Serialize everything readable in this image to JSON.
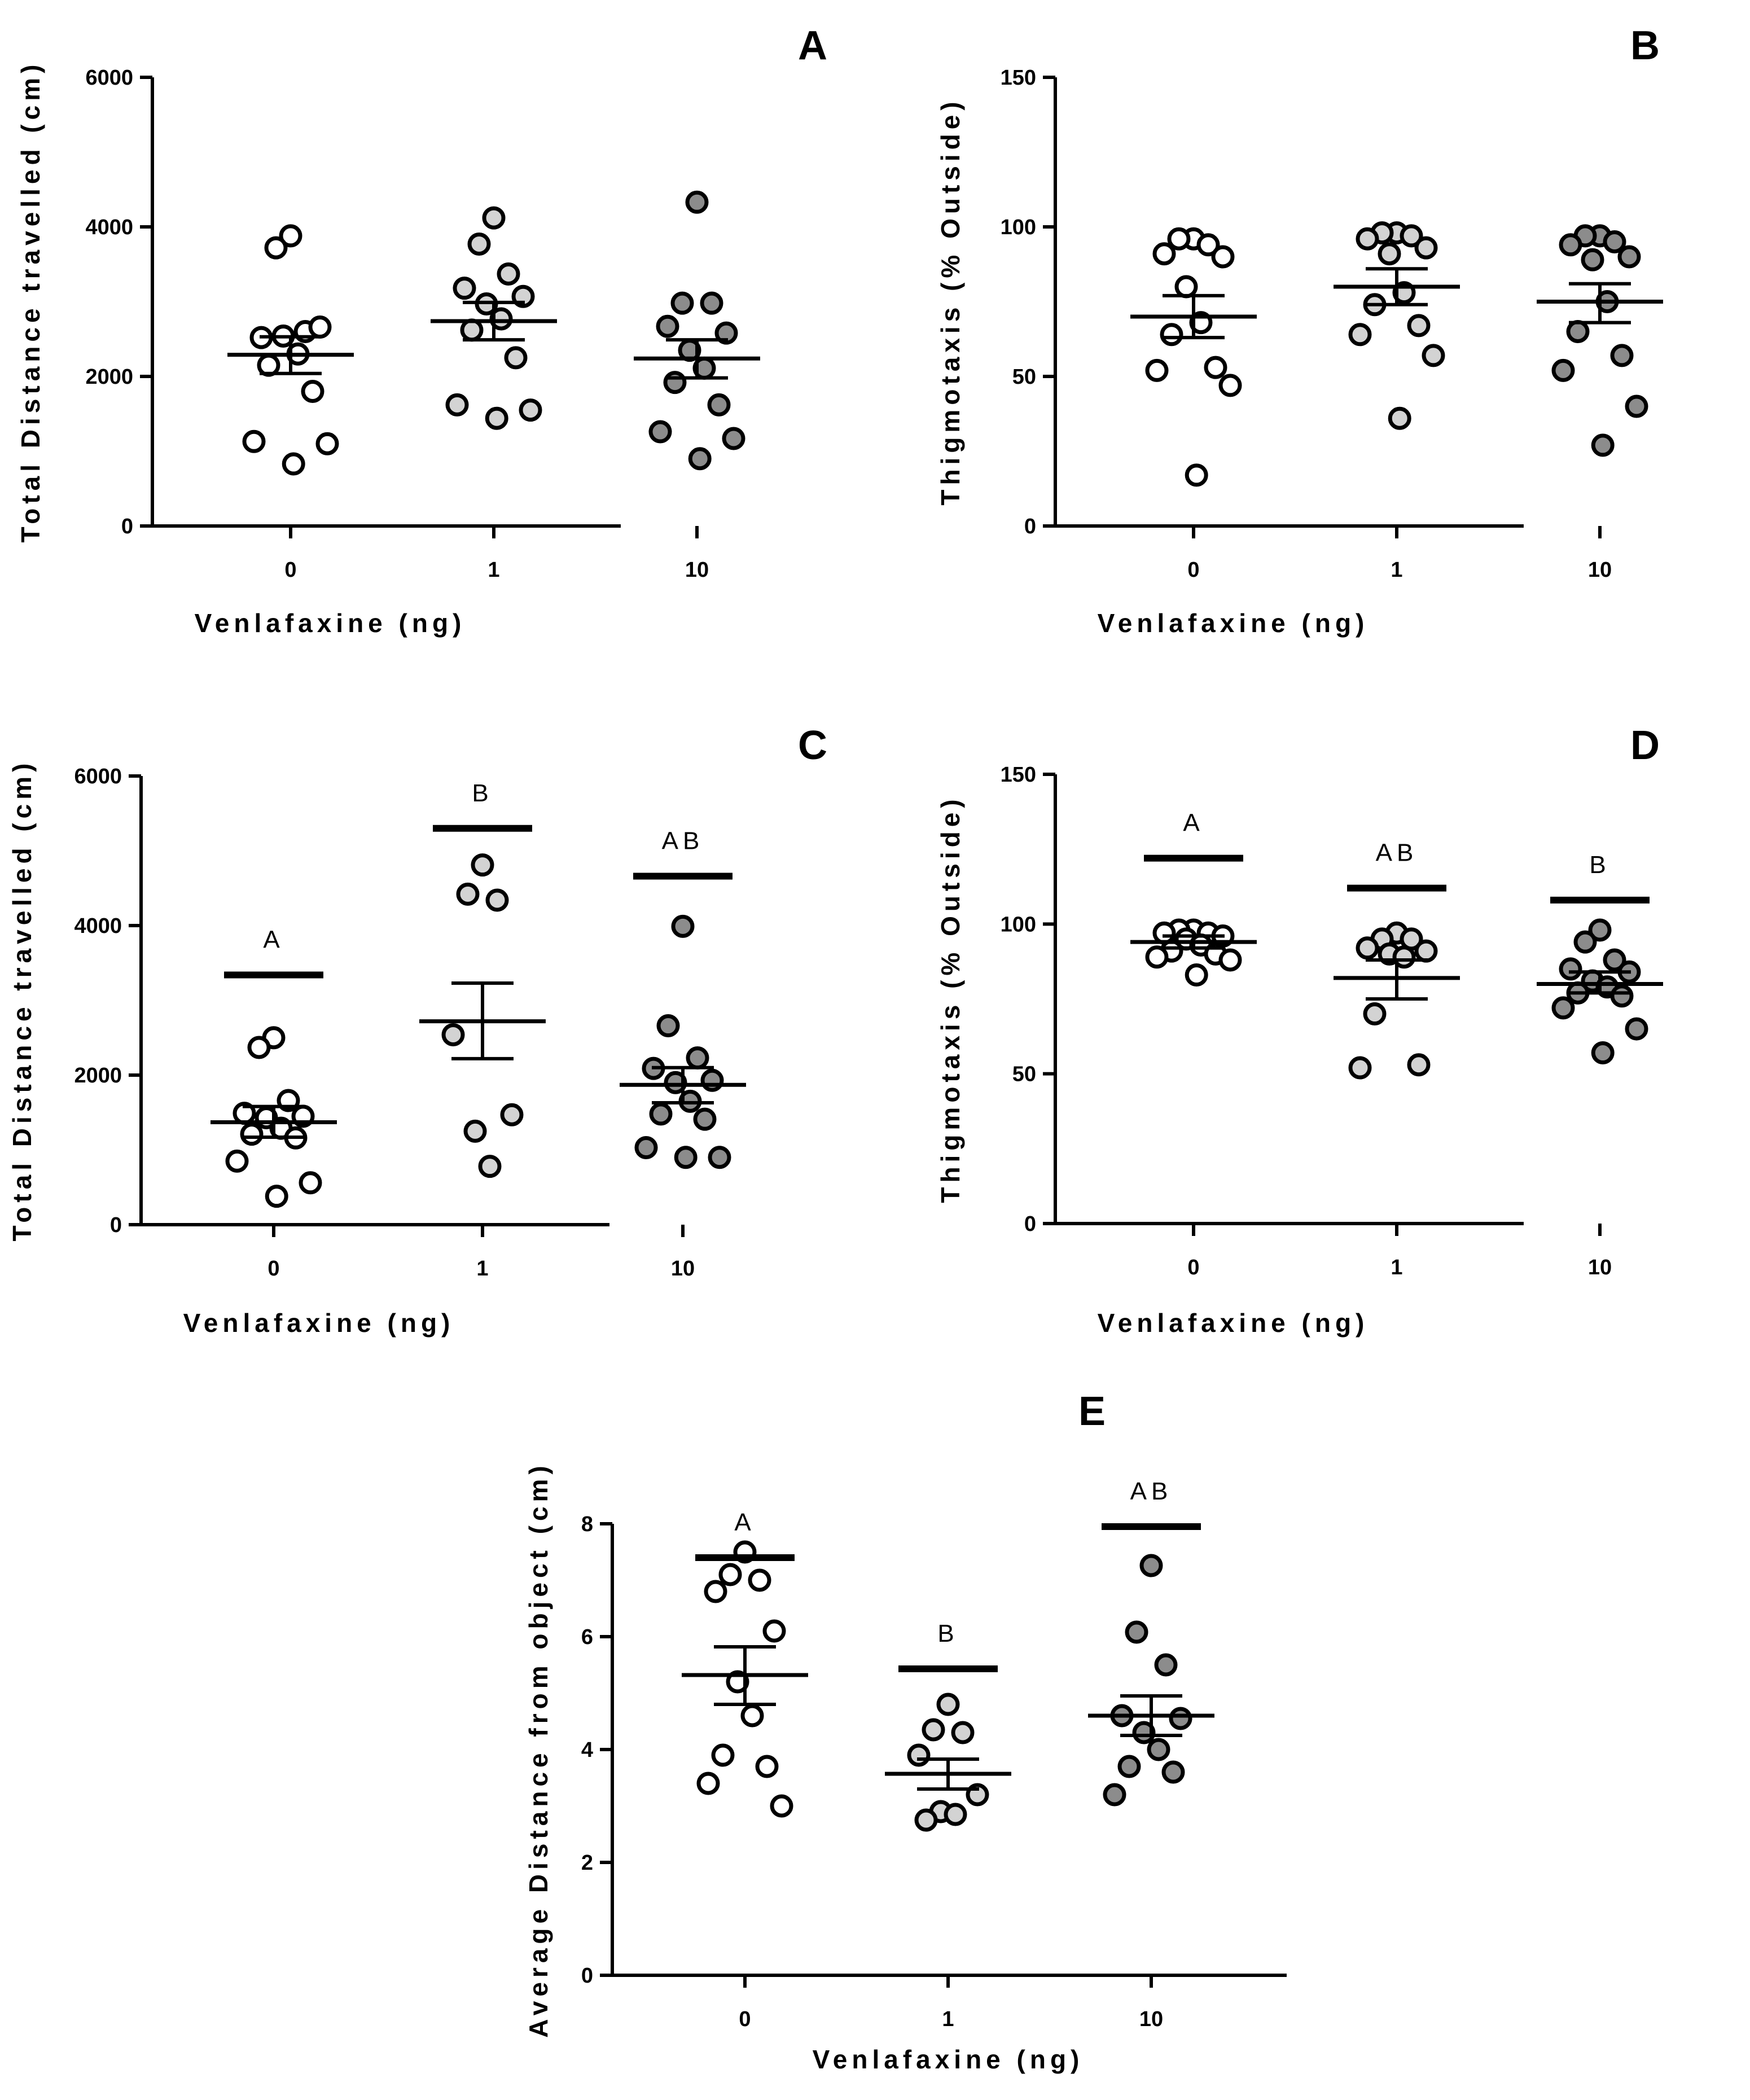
{
  "chart_data": [
    {
      "panel": "A",
      "type": "scatter",
      "xlabel": "Venlafaxine (ng)",
      "ylabel": "Total Distance travelled (cm)",
      "categories": [
        "0",
        "1",
        "10"
      ],
      "ylim": [
        0,
        6000
      ],
      "yticks": [
        "0",
        "2000",
        "4000",
        "6000"
      ],
      "groups": [
        {
          "category": "0",
          "fill": "white",
          "points": [
            3880,
            3720,
            2600,
            2520,
            2660,
            2540,
            2300,
            2150,
            1800,
            1130,
            1100,
            830
          ],
          "mean": 2290,
          "sem_low": 2040,
          "sem_high": 2530
        },
        {
          "category": "1",
          "fill": "lightgray",
          "points": [
            4120,
            3770,
            3370,
            3180,
            3070,
            2970,
            2770,
            2620,
            2250,
            1620,
            1550,
            1440
          ],
          "mean": 2740,
          "sem_low": 2490,
          "sem_high": 2990
        },
        {
          "category": "10",
          "fill": "gray",
          "points": [
            4330,
            2980,
            2980,
            2670,
            2580,
            2350,
            2110,
            1920,
            1620,
            1260,
            1170,
            900
          ],
          "mean": 2240,
          "sem_low": 1980,
          "sem_high": 2490
        }
      ],
      "significance": []
    },
    {
      "panel": "B",
      "type": "scatter",
      "xlabel": "Venlafaxine (ng)",
      "ylabel": "Thigmotaxis (% Outside)",
      "categories": [
        "0",
        "1",
        "10"
      ],
      "ylim": [
        0,
        150
      ],
      "yticks": [
        "0",
        "50",
        "100",
        "150"
      ],
      "groups": [
        {
          "category": "0",
          "fill": "white",
          "points": [
            96,
            96,
            94,
            91,
            90,
            80,
            68,
            64,
            53,
            52,
            47,
            17
          ],
          "mean": 70,
          "sem_low": 63,
          "sem_high": 77
        },
        {
          "category": "1",
          "fill": "lightgray",
          "points": [
            98,
            98,
            97,
            96,
            93,
            91,
            78,
            74,
            67,
            64,
            57,
            36
          ],
          "mean": 80,
          "sem_low": 74,
          "sem_high": 86
        },
        {
          "category": "10",
          "fill": "gray",
          "points": [
            97,
            97,
            95,
            94,
            90,
            89,
            75,
            65,
            57,
            52,
            40,
            27
          ],
          "mean": 75,
          "sem_low": 68,
          "sem_high": 81
        },
        {
          "category": "10",
          "fill": "gray",
          "points": [],
          "mean": null,
          "sem_low": null,
          "sem_high": null
        }
      ],
      "significance": []
    },
    {
      "panel": "C",
      "type": "scatter",
      "xlabel": "Venlafaxine (ng)",
      "ylabel": "Total Distance travelled (cm)",
      "categories": [
        "0",
        "1",
        "10"
      ],
      "ylim": [
        0,
        6000
      ],
      "yticks": [
        "0",
        "2000",
        "4000",
        "6000"
      ],
      "groups": [
        {
          "category": "0",
          "fill": "white",
          "points": [
            2500,
            2370,
            1660,
            1490,
            1450,
            1430,
            1290,
            1210,
            1160,
            850,
            560,
            380
          ],
          "mean": 1370,
          "sem_low": 1170,
          "sem_high": 1580
        },
        {
          "category": "1",
          "fill": "lightgray",
          "points": [
            4810,
            4420,
            4340,
            2540,
            1470,
            1250,
            780
          ],
          "mean": 2720,
          "sem_low": 2220,
          "sem_high": 3230
        },
        {
          "category": "10",
          "fill": "gray",
          "points": [
            3990,
            2660,
            2230,
            2090,
            1930,
            1900,
            1650,
            1480,
            1410,
            1030,
            900,
            900
          ],
          "mean": 1870,
          "sem_low": 1630,
          "sem_high": 2100
        }
      ],
      "significance": [
        {
          "category": "0",
          "label": "A",
          "bar_value": 3340
        },
        {
          "category": "1",
          "label": "B",
          "bar_value": 5300
        },
        {
          "category": "10",
          "label": "AB",
          "bar_value": 4660
        }
      ]
    },
    {
      "panel": "D",
      "type": "scatter",
      "xlabel": "Venlafaxine (ng)",
      "ylabel": "Thigmotaxis (% Outside)",
      "categories": [
        "0",
        "1",
        "10"
      ],
      "ylim": [
        0,
        150
      ],
      "yticks": [
        "0",
        "50",
        "100",
        "150"
      ],
      "groups": [
        {
          "category": "0",
          "fill": "white",
          "points": [
            98,
            98,
            97,
            97,
            96,
            95,
            93,
            91,
            90,
            89,
            88,
            83
          ],
          "mean": 94,
          "sem_low": 92,
          "sem_high": 96
        },
        {
          "category": "1",
          "fill": "lightgray",
          "points": [
            97,
            95,
            95,
            92,
            91,
            90,
            89,
            70,
            53,
            52
          ],
          "mean": 82,
          "sem_low": 75,
          "sem_high": 88
        },
        {
          "category": "10",
          "fill": "gray",
          "points": [
            98,
            94,
            88,
            85,
            84,
            81,
            79,
            77,
            76,
            72,
            65,
            57
          ],
          "mean": 80,
          "sem_low": 77,
          "sem_high": 84
        }
      ],
      "significance": [
        {
          "category": "0",
          "label": "A",
          "bar_value": 122
        },
        {
          "category": "1",
          "label": "AB",
          "bar_value": 112
        },
        {
          "category": "10",
          "label": "B",
          "bar_value": 108
        }
      ]
    },
    {
      "panel": "E",
      "type": "scatter",
      "xlabel": "Venlafaxine (ng)",
      "ylabel": "Average Distance from object (cm)",
      "categories": [
        "0",
        "1",
        "10"
      ],
      "ylim": [
        0,
        8
      ],
      "yticks": [
        "0",
        "2",
        "4",
        "6",
        "8"
      ],
      "groups": [
        {
          "category": "0",
          "fill": "white",
          "points": [
            7.5,
            7.1,
            7.0,
            6.8,
            6.1,
            5.2,
            4.6,
            3.9,
            3.7,
            3.4,
            3.0
          ],
          "mean": 5.32,
          "sem_low": 4.8,
          "sem_high": 5.82
        },
        {
          "category": "1",
          "fill": "lightgray",
          "points": [
            4.8,
            4.35,
            4.3,
            3.9,
            3.2,
            2.9,
            2.85,
            2.75
          ],
          "mean": 3.57,
          "sem_low": 3.3,
          "sem_high": 3.83
        },
        {
          "category": "10",
          "fill": "gray",
          "points": [
            7.26,
            6.08,
            5.5,
            4.6,
            4.55,
            4.3,
            4.0,
            3.7,
            3.6,
            3.2
          ],
          "mean": 4.6,
          "sem_low": 4.25,
          "sem_high": 4.95
        }
      ],
      "significance": [
        {
          "category": "0",
          "label": "A",
          "bar_value": 7.4
        },
        {
          "category": "1",
          "label": "B",
          "bar_value": 5.43
        },
        {
          "category": "10",
          "label": "AB",
          "bar_value": 7.95
        }
      ]
    }
  ],
  "fills": {
    "white": "#ffffff",
    "lightgray": "#d3d3d3",
    "gray": "#8c8c8c"
  }
}
